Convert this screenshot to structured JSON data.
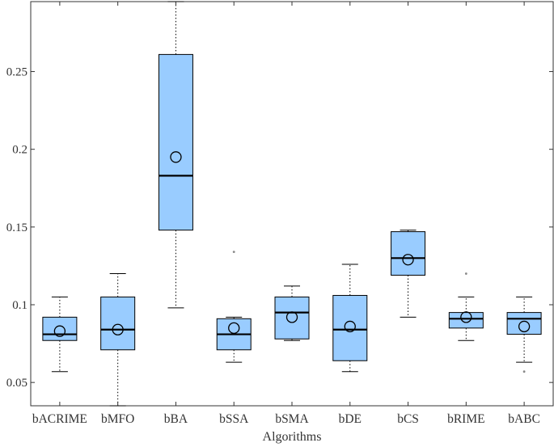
{
  "chart_data": {
    "type": "box",
    "title": "",
    "xlabel": "Algorithms",
    "ylabel": "",
    "ylim": [
      0.035,
      0.295
    ],
    "yticks": [
      {
        "value": 0.05,
        "label": "0.05"
      },
      {
        "value": 0.1,
        "label": "0.1"
      },
      {
        "value": 0.15,
        "label": "0.15"
      },
      {
        "value": 0.2,
        "label": "0.2"
      },
      {
        "value": 0.25,
        "label": "0.25"
      }
    ],
    "grid": false,
    "box_color": "#99ccff",
    "edge_color": "#000000",
    "outlier_color": "#888888",
    "categories": [
      "bACRIME",
      "bMFO",
      "bBA",
      "bSSA",
      "bSMA",
      "bDE",
      "bCS",
      "bRIME",
      "bABC"
    ],
    "boxes": [
      {
        "name": "bACRIME",
        "whisker_low": 0.057,
        "q1": 0.077,
        "median": 0.081,
        "q3": 0.092,
        "whisker_high": 0.105,
        "mean": 0.083,
        "outliers": []
      },
      {
        "name": "bMFO",
        "whisker_low": 0.035,
        "q1": 0.071,
        "median": 0.084,
        "q3": 0.105,
        "whisker_high": 0.12,
        "mean": 0.084,
        "outliers": []
      },
      {
        "name": "bBA",
        "whisker_low": 0.098,
        "q1": 0.148,
        "median": 0.183,
        "q3": 0.261,
        "whisker_high": 0.295,
        "mean": 0.195,
        "outliers": []
      },
      {
        "name": "bSSA",
        "whisker_low": 0.063,
        "q1": 0.071,
        "median": 0.081,
        "q3": 0.091,
        "whisker_high": 0.092,
        "mean": 0.085,
        "outliers": [
          0.134
        ]
      },
      {
        "name": "bSMA",
        "whisker_low": 0.077,
        "q1": 0.078,
        "median": 0.095,
        "q3": 0.105,
        "whisker_high": 0.112,
        "mean": 0.092,
        "outliers": []
      },
      {
        "name": "bDE",
        "whisker_low": 0.057,
        "q1": 0.064,
        "median": 0.084,
        "q3": 0.106,
        "whisker_high": 0.126,
        "mean": 0.086,
        "outliers": []
      },
      {
        "name": "bCS",
        "whisker_low": 0.092,
        "q1": 0.119,
        "median": 0.13,
        "q3": 0.147,
        "whisker_high": 0.148,
        "mean": 0.129,
        "outliers": []
      },
      {
        "name": "bRIME",
        "whisker_low": 0.077,
        "q1": 0.085,
        "median": 0.091,
        "q3": 0.095,
        "whisker_high": 0.105,
        "mean": 0.092,
        "outliers": [
          0.12
        ]
      },
      {
        "name": "bABC",
        "whisker_low": 0.063,
        "q1": 0.081,
        "median": 0.091,
        "q3": 0.095,
        "whisker_high": 0.105,
        "mean": 0.086,
        "outliers": [
          0.057
        ]
      }
    ]
  }
}
